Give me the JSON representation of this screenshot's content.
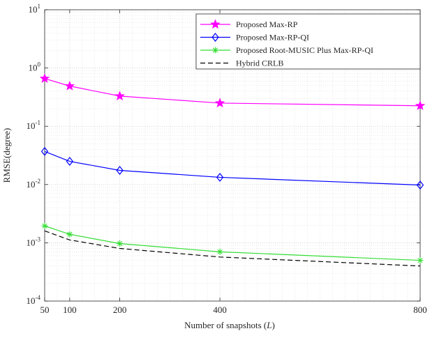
{
  "chart_data": {
    "type": "line",
    "x": [
      50,
      100,
      200,
      400,
      800
    ],
    "xlim": [
      50,
      800
    ],
    "xticks": [
      "50",
      "100",
      "200",
      "400",
      "800"
    ],
    "xlabel_main": "Number of snapshots (",
    "xlabel_var": "L",
    "xlabel_end": ")",
    "ylabel": "RMSE(degree)",
    "yscale": "log",
    "ylim": [
      0.0001,
      10
    ],
    "yticks": [
      {
        "base": "10",
        "exp": "1"
      },
      {
        "base": "10",
        "exp": "0"
      },
      {
        "base": "10",
        "exp": "-1"
      },
      {
        "base": "10",
        "exp": "-2"
      },
      {
        "base": "10",
        "exp": "-3"
      },
      {
        "base": "10",
        "exp": "-4"
      }
    ],
    "grid": true,
    "minor_grid": true,
    "legend_position": "top-right",
    "series": [
      {
        "name": "Proposed Max-RP",
        "color": "#ff00ff",
        "marker": "star",
        "dash": "solid",
        "values": [
          0.66,
          0.49,
          0.33,
          0.25,
          0.225
        ]
      },
      {
        "name": "Proposed Max-RP-QI",
        "color": "#0000ff",
        "marker": "diamond",
        "dash": "solid",
        "values": [
          0.037,
          0.025,
          0.0175,
          0.0133,
          0.0098
        ]
      },
      {
        "name": "Proposed Root-MUSIC Plus Max-RP-QI",
        "color": "#33dd33",
        "marker": "asterisk",
        "dash": "solid",
        "values": [
          0.00195,
          0.0014,
          0.00097,
          0.0007,
          0.0005
        ]
      },
      {
        "name": "Hybrid CRLB",
        "color": "#000000",
        "marker": "none",
        "dash": "dashed",
        "values": [
          0.0016,
          0.00112,
          0.0008,
          0.00057,
          0.0004
        ]
      }
    ]
  }
}
